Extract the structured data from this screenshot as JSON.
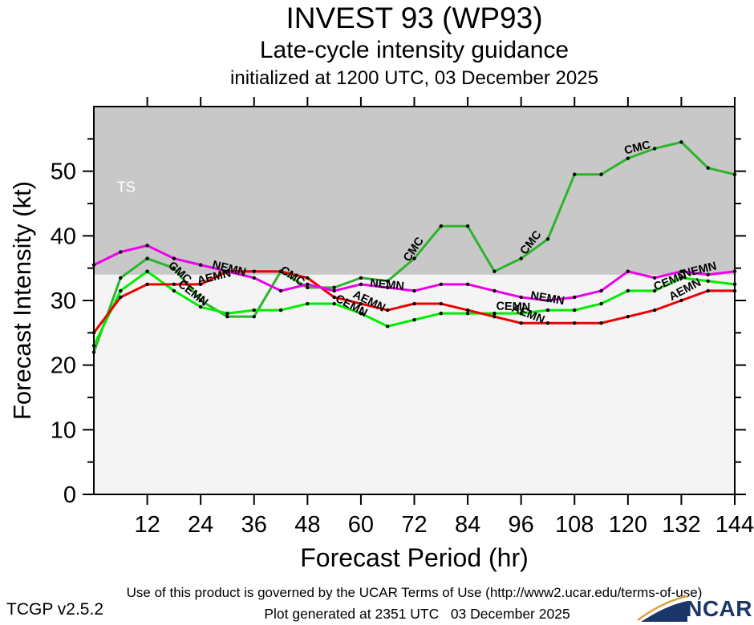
{
  "header": {
    "title": "INVEST 93 (WP93)",
    "subtitle": "Late-cycle intensity guidance",
    "init_line": "initialized at 1200 UTC, 03 December 2025"
  },
  "axes": {
    "x_ticks": [
      12,
      24,
      36,
      48,
      60,
      72,
      84,
      96,
      108,
      120,
      132,
      144
    ],
    "y_ticks": [
      0,
      10,
      20,
      30,
      40,
      50
    ],
    "y_minor_step": 5
  },
  "ts_zone": {
    "label": "TS",
    "threshold_kt": 34,
    "band_color": "#c8c8c8",
    "below_color": "#f4f4f4",
    "label_color": "#ffffff"
  },
  "chart_data": {
    "type": "line",
    "title": "INVEST 93 (WP93) Late-cycle intensity guidance initialized at 1200 UTC, 03 December 2025",
    "xlabel": "Forecast Period (hr)",
    "ylabel": "Forecast Intensity (kt)",
    "xlim": [
      0,
      144
    ],
    "ylim": [
      0,
      60
    ],
    "grid": false,
    "legend": "labels drawn along lines",
    "marker": {
      "color": "#000000",
      "radius": 2.2
    },
    "x_hours": [
      0,
      6,
      12,
      18,
      24,
      30,
      36,
      42,
      48,
      54,
      60,
      66,
      72,
      78,
      84,
      90,
      96,
      102,
      108,
      114,
      120,
      126,
      132,
      138,
      144
    ],
    "series": [
      {
        "name": "CMC",
        "color": "#2cb42c",
        "values": [
          22,
          33.5,
          36.5,
          35,
          30,
          27.5,
          27.5,
          34.5,
          32,
          32,
          33.5,
          33,
          36.5,
          41.5,
          41.5,
          34.5,
          36.5,
          39.5,
          49.5,
          49.5,
          52,
          53.5,
          54.5,
          50.5,
          49.5
        ]
      },
      {
        "name": "CEMN",
        "color": "#00ee00",
        "values": [
          23,
          31.5,
          34.5,
          31.5,
          29,
          28,
          28.5,
          28.5,
          29.5,
          29.5,
          28,
          26,
          27,
          28,
          28,
          28,
          28,
          28.5,
          28.5,
          29.5,
          31.5,
          31.5,
          33.5,
          33,
          32.5
        ]
      },
      {
        "name": "AEMN",
        "color": "#ee0000",
        "values": [
          25,
          30.5,
          32.5,
          32.5,
          32.5,
          34.5,
          34.5,
          34.5,
          33.5,
          30.5,
          29.5,
          28.5,
          29.5,
          29.5,
          28.5,
          27.5,
          26.5,
          26.5,
          26.5,
          26.5,
          27.5,
          28.5,
          30,
          31.5,
          31.5
        ]
      },
      {
        "name": "NEMN",
        "color": "#ee00ee",
        "values": [
          35.5,
          37.5,
          38.5,
          36.5,
          35.5,
          34.5,
          33.5,
          31.5,
          32.5,
          31.5,
          32.5,
          32,
          31.5,
          32.5,
          32.5,
          31.5,
          30.5,
          30,
          30.5,
          31.5,
          34.5,
          33.5,
          34.5,
          34,
          34.5
        ]
      }
    ],
    "annotations": [
      {
        "text": "CMC",
        "hr": 18.8,
        "kt": 33.9,
        "angle": 42
      },
      {
        "text": "CEMN",
        "hr": 21.8,
        "kt": 30.7,
        "angle": 38
      },
      {
        "text": "AEMN",
        "hr": 27.2,
        "kt": 33.1,
        "angle": -14
      },
      {
        "text": "NEMN",
        "hr": 30.2,
        "kt": 34.4,
        "angle": 14
      },
      {
        "text": "CMC",
        "hr": 44.2,
        "kt": 33.3,
        "angle": 33
      },
      {
        "text": "CEMN",
        "hr": 57.5,
        "kt": 28.7,
        "angle": 28
      },
      {
        "text": "AEMN",
        "hr": 61.5,
        "kt": 29.4,
        "angle": 26
      },
      {
        "text": "NEMN",
        "hr": 65.8,
        "kt": 31.9,
        "angle": 6
      },
      {
        "text": "CMC",
        "hr": 72.5,
        "kt": 37.6,
        "angle": -56
      },
      {
        "text": "CEMN",
        "hr": 94.2,
        "kt": 28.5,
        "angle": 2
      },
      {
        "text": "AEMN",
        "hr": 97.3,
        "kt": 27.4,
        "angle": 22
      },
      {
        "text": "NEMN",
        "hr": 101.8,
        "kt": 29.8,
        "angle": 10
      },
      {
        "text": "CMC",
        "hr": 98.8,
        "kt": 38.6,
        "angle": -52
      },
      {
        "text": "CMC",
        "hr": 122.3,
        "kt": 53.1,
        "angle": -14
      },
      {
        "text": "CEMN",
        "hr": 129.8,
        "kt": 32.5,
        "angle": -22
      },
      {
        "text": "AEMN",
        "hr": 133.2,
        "kt": 31.2,
        "angle": -28
      },
      {
        "text": "NEMN",
        "hr": 136.3,
        "kt": 34.2,
        "angle": -14
      }
    ]
  },
  "footer": {
    "terms": "Use of this product is governed by the UCAR Terms of Use (http://www2.ucar.edu/terms-of-use)",
    "version": "TCGP v2.5.2",
    "generated": "Plot generated at 2351 UTC   03 December 2025",
    "ncar": "NCAR"
  }
}
